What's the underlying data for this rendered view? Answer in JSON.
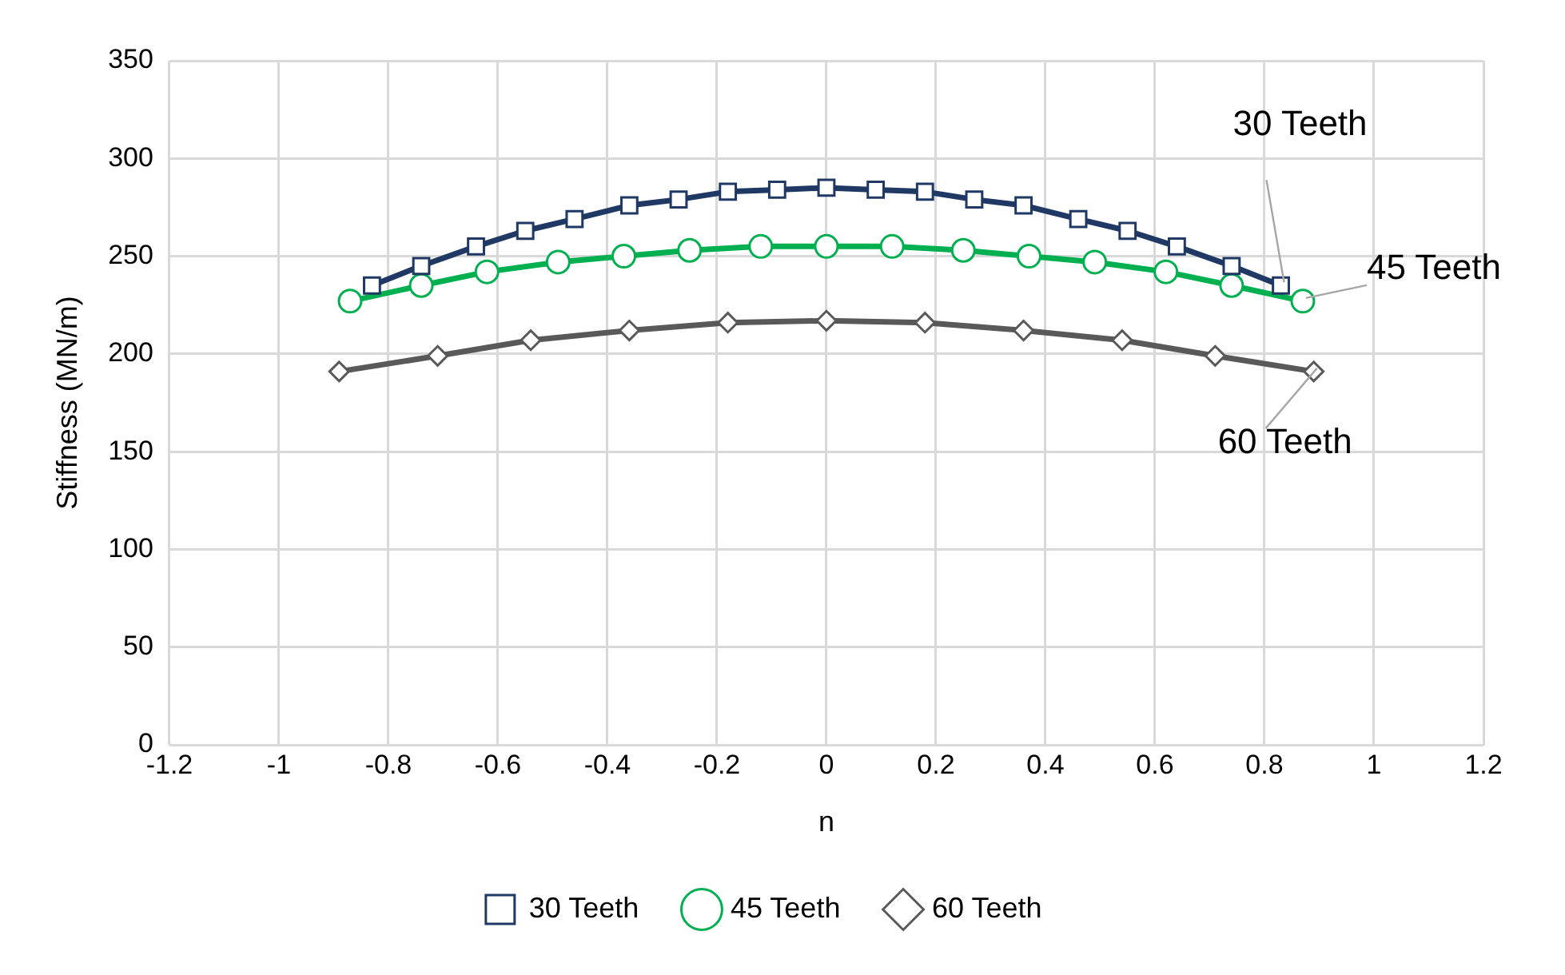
{
  "chart_data": {
    "type": "line",
    "xlabel": "n",
    "ylabel": "Stiffness (MN/m)",
    "xlim": [
      -1.2,
      1.2
    ],
    "xticks": [
      -1.2,
      -1,
      -0.8,
      -0.6,
      -0.4,
      -0.2,
      0,
      0.2,
      0.4,
      0.6,
      0.8,
      1,
      1.2
    ],
    "ylim": [
      0,
      350
    ],
    "yticks": [
      0,
      50,
      100,
      150,
      200,
      250,
      300,
      350
    ],
    "grid": true,
    "legend": "bottom",
    "line_style": "solid",
    "series": [
      {
        "name": "30 Teeth",
        "color": "#1f3864",
        "marker": "square",
        "x": [
          -0.83,
          -0.74,
          -0.64,
          -0.55,
          -0.46,
          -0.36,
          -0.27,
          -0.18,
          -0.09,
          0,
          0.09,
          0.18,
          0.27,
          0.36,
          0.46,
          0.55,
          0.64,
          0.74,
          0.83
        ],
        "values": [
          235,
          245,
          255,
          263,
          269,
          276,
          279,
          283,
          284,
          285,
          284,
          283,
          279,
          276,
          269,
          263,
          255,
          245,
          235
        ]
      },
      {
        "name": "45 Teeth",
        "color": "#00b050",
        "marker": "circle",
        "x": [
          -0.87,
          -0.74,
          -0.62,
          -0.49,
          -0.37,
          -0.25,
          -0.12,
          0,
          0.12,
          0.25,
          0.37,
          0.49,
          0.62,
          0.74,
          0.87
        ],
        "values": [
          227,
          235,
          242,
          247,
          250,
          253,
          255,
          255,
          255,
          253,
          250,
          247,
          242,
          235,
          227
        ]
      },
      {
        "name": "60 Teeth",
        "color": "#595959",
        "marker": "diamond",
        "x": [
          -0.89,
          -0.71,
          -0.54,
          -0.36,
          -0.18,
          0,
          0.18,
          0.36,
          0.54,
          0.71,
          0.89
        ],
        "values": [
          191,
          199,
          207,
          212,
          216,
          217,
          216,
          212,
          207,
          199,
          191
        ]
      }
    ],
    "annotations": [
      {
        "text": "30 Teeth",
        "x": 0.83,
        "y": 235
      },
      {
        "text": "45 Teeth",
        "x": 0.87,
        "y": 227
      },
      {
        "text": "60 Teeth",
        "x": 0.89,
        "y": 191
      }
    ]
  }
}
